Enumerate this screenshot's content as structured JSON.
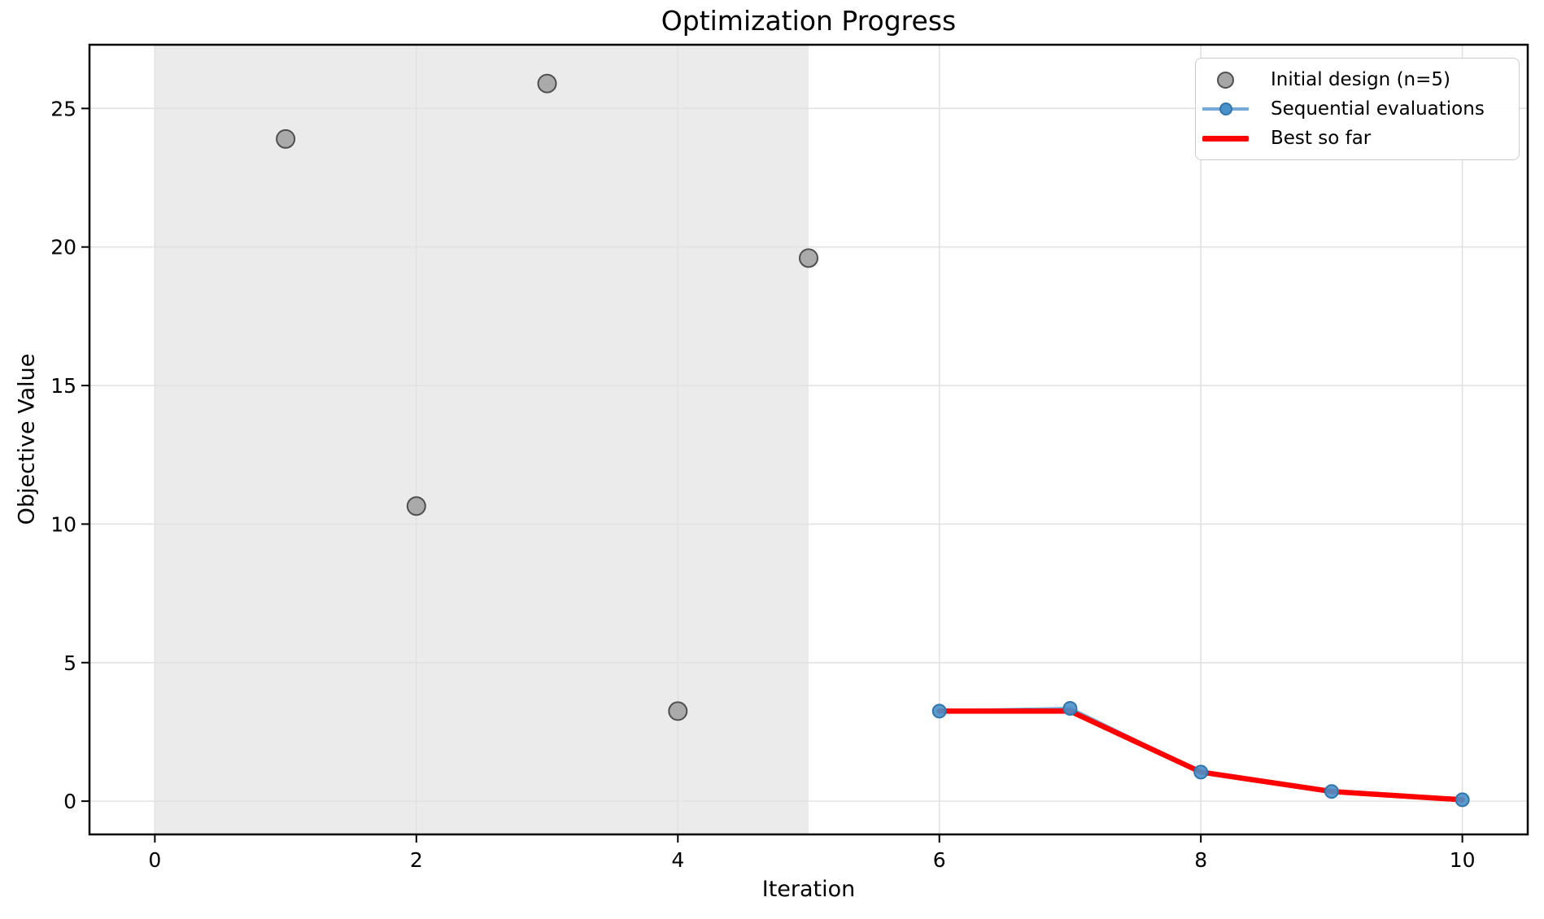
{
  "chart_data": {
    "type": "scatter",
    "title": "Optimization Progress",
    "xlabel": "Iteration",
    "ylabel": "Objective Value",
    "xlim": [
      -0.5,
      10.5
    ],
    "ylim": [
      -1.2,
      27.3
    ],
    "x_ticks": [
      0,
      2,
      4,
      6,
      8,
      10
    ],
    "y_ticks": [
      0,
      5,
      10,
      15,
      20,
      25
    ],
    "grid": true,
    "legend_position": "upper right",
    "shaded_region": {
      "x_start": 0,
      "x_end": 5,
      "color": "#ebebeb"
    },
    "series": [
      {
        "name": "Initial design (n=5)",
        "type": "scatter",
        "x": [
          1,
          2,
          3,
          4,
          5
        ],
        "y": [
          23.9,
          10.65,
          25.9,
          3.25,
          19.6
        ],
        "marker_color": "#a6a6a6",
        "marker_edge_color": "#4f4f4f",
        "marker_radius": 11
      },
      {
        "name": "Sequential evaluations",
        "type": "line_marker",
        "x": [
          6,
          7,
          8,
          9,
          10
        ],
        "y": [
          3.25,
          3.35,
          1.05,
          0.35,
          0.05
        ],
        "line_color": "#74a9d8",
        "line_width": 4,
        "marker_color": "#4a90c9",
        "marker_edge_color": "#2f76ad",
        "marker_radius": 8
      },
      {
        "name": "Best so far",
        "type": "line",
        "x": [
          6,
          7,
          8,
          9,
          10
        ],
        "y": [
          3.25,
          3.25,
          1.05,
          0.35,
          0.05
        ],
        "line_color": "#ff0000",
        "line_width": 6.5
      }
    ],
    "colors": {
      "background": "#ffffff",
      "gridline": "#e2e2e2",
      "spine": "#000000",
      "tick_label": "#000000"
    }
  }
}
